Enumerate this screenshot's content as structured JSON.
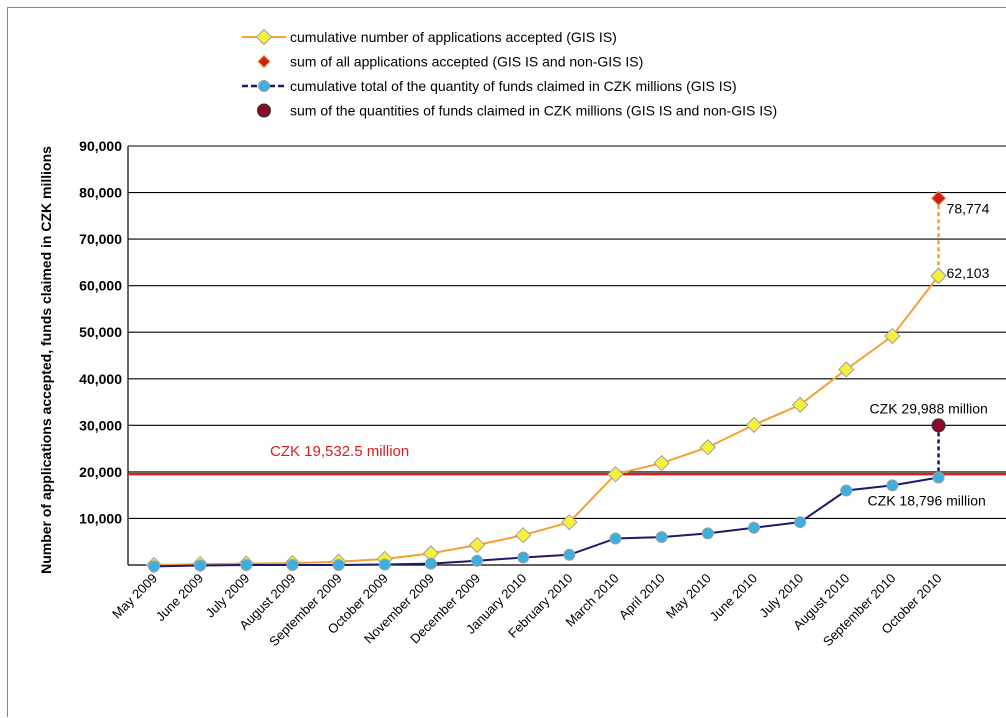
{
  "chart_data": {
    "type": "line",
    "ylabel": "Number of applications accepted, funds claimed in CZK millions",
    "ylim": [
      0,
      90000
    ],
    "y_ticks": [
      "90,000",
      "80,000",
      "70,000",
      "60,000",
      "50,000",
      "40,000",
      "30,000",
      "20,000",
      "10,000"
    ],
    "grid": true,
    "legend_position": "top",
    "categories": [
      "May 2009",
      "June 2009",
      "July 2009",
      "August 2009",
      "September 2009",
      "October 2009",
      "November 2009",
      "December 2009",
      "January 2010",
      "February 2010",
      "March 2010",
      "April 2010",
      "May 2010",
      "June 2010",
      "July 2010",
      "August 2010",
      "September 2010",
      "October 2010"
    ],
    "series": [
      {
        "name": "cumulative number of applications accepted (GIS IS)",
        "color": "#f5a030",
        "marker_fill": "#f5f03a",
        "marker": "diamond",
        "values": [
          0,
          200,
          300,
          400,
          700,
          1300,
          2500,
          4300,
          6400,
          9200,
          19500,
          21900,
          25300,
          30100,
          34400,
          42000,
          49200,
          62103
        ]
      },
      {
        "name": "cumulative total of the quantity of funds claimed in CZK millions (GIS IS)",
        "color": "#1a1a6e",
        "marker_fill": "#3bb0e0",
        "marker": "circle",
        "values": [
          -300,
          -100,
          0,
          0,
          0,
          100,
          300,
          900,
          1600,
          2200,
          5700,
          6000,
          6800,
          8000,
          9200,
          16000,
          17100,
          18796
        ]
      }
    ],
    "points": [
      {
        "name": "sum of all applications accepted (GIS IS and non-GIS IS)",
        "category": "October 2010",
        "value": 78774,
        "label": "78,774",
        "color": "#c81e1e",
        "marker": "diamond-red"
      },
      {
        "name": "sum of the quantities of funds claimed in CZK millions (GIS IS and non-GIS IS)",
        "category": "October 2010",
        "value": 29988,
        "label": "CZK 29,988 million",
        "color": "#8b0a2a",
        "marker": "circle-dark"
      }
    ],
    "value_labels": {
      "applications_last": "62,103",
      "funds_last": "CZK 18,796 million"
    },
    "reference_line": {
      "value": 19532.5,
      "label": "CZK 19,532.5 million",
      "color": "#d42020"
    }
  }
}
